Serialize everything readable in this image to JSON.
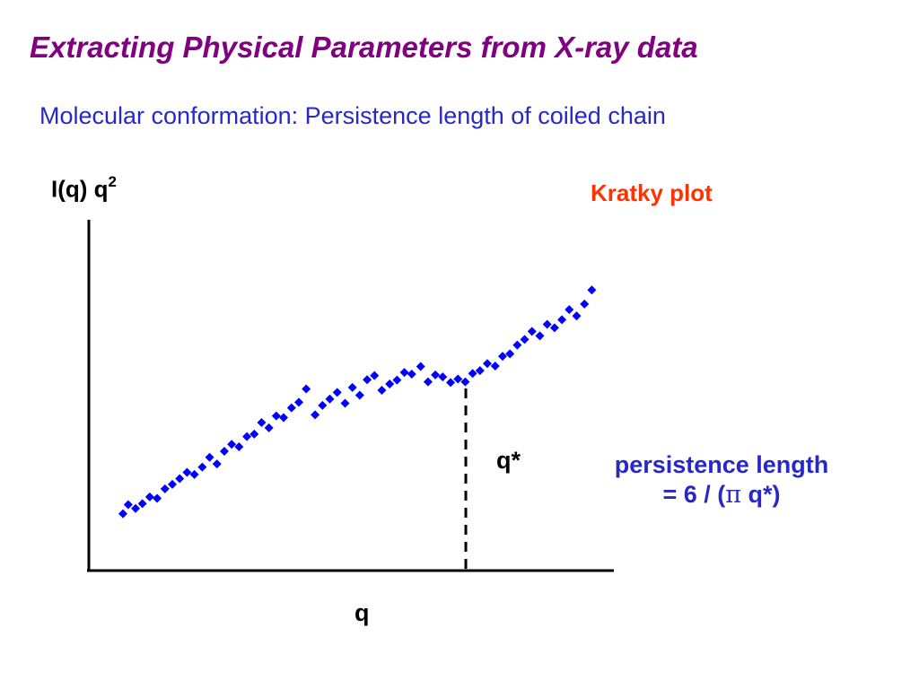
{
  "title": "Extracting Physical Parameters from X-ray data",
  "subtitle": "Molecular conformation: Persistence length of coiled chain",
  "annotation": {
    "persistence_line1": "persistence length",
    "persistence_prefix": "= 6 / (",
    "persistence_pi": "π",
    "persistence_suffix": " q*)"
  },
  "colors": {
    "title": "#800080",
    "subtitle": "#2828c8",
    "plot_label": "#ff3300",
    "points": "#0000ff",
    "axes": "#000000"
  },
  "chart_data": {
    "type": "scatter",
    "title": "Kratky plot",
    "xlabel": "q",
    "ylabel_base": "I(q) q",
    "ylabel_sup": "2",
    "xlim": [
      0,
      100
    ],
    "ylim": [
      0,
      100
    ],
    "ticks": "none",
    "grid": false,
    "marker": "diamond",
    "qstar": {
      "label": "q*",
      "x": 71.8
    },
    "series": [
      {
        "x": [
          6.5,
          7.5,
          8.9,
          10.2,
          11.6,
          13.0,
          14.5,
          15.9,
          17.3,
          18.7,
          20.1,
          21.6,
          23.0,
          24.4,
          25.8,
          27.2,
          28.6,
          30.1,
          31.5,
          32.9,
          34.3,
          35.7,
          37.1,
          38.6,
          40.0,
          41.4,
          43.1,
          44.5,
          45.9,
          47.3,
          48.8,
          50.2,
          51.6,
          53.0,
          54.4,
          55.8,
          57.3,
          58.7,
          60.1,
          61.5,
          63.2,
          64.6,
          66.0,
          67.4,
          68.9,
          70.3,
          71.7,
          73.1,
          74.5,
          75.9,
          77.4,
          78.8,
          80.2,
          81.6,
          83.0,
          84.4,
          85.9,
          87.3,
          88.7,
          90.1,
          91.5,
          92.9,
          94.4,
          95.8
        ],
        "y": [
          16.2,
          18.8,
          17.7,
          19.1,
          21.0,
          20.6,
          23.3,
          24.6,
          26.2,
          28.0,
          27.4,
          29.5,
          32.3,
          30.4,
          34.0,
          36.0,
          35.3,
          38.2,
          38.9,
          42.2,
          40.7,
          44.1,
          43.6,
          46.4,
          48.0,
          51.8,
          44.4,
          47.1,
          48.9,
          50.8,
          47.7,
          52.2,
          50.0,
          54.4,
          55.6,
          51.4,
          53.2,
          54.3,
          56.5,
          56.0,
          58.2,
          53.8,
          55.8,
          55.2,
          53.6,
          54.6,
          53.8,
          56.2,
          57.0,
          59.0,
          58.3,
          61.1,
          61.8,
          64.3,
          65.9,
          68.2,
          66.9,
          70.2,
          69.2,
          71.5,
          74.4,
          72.6,
          76.0,
          80.0
        ]
      }
    ]
  }
}
